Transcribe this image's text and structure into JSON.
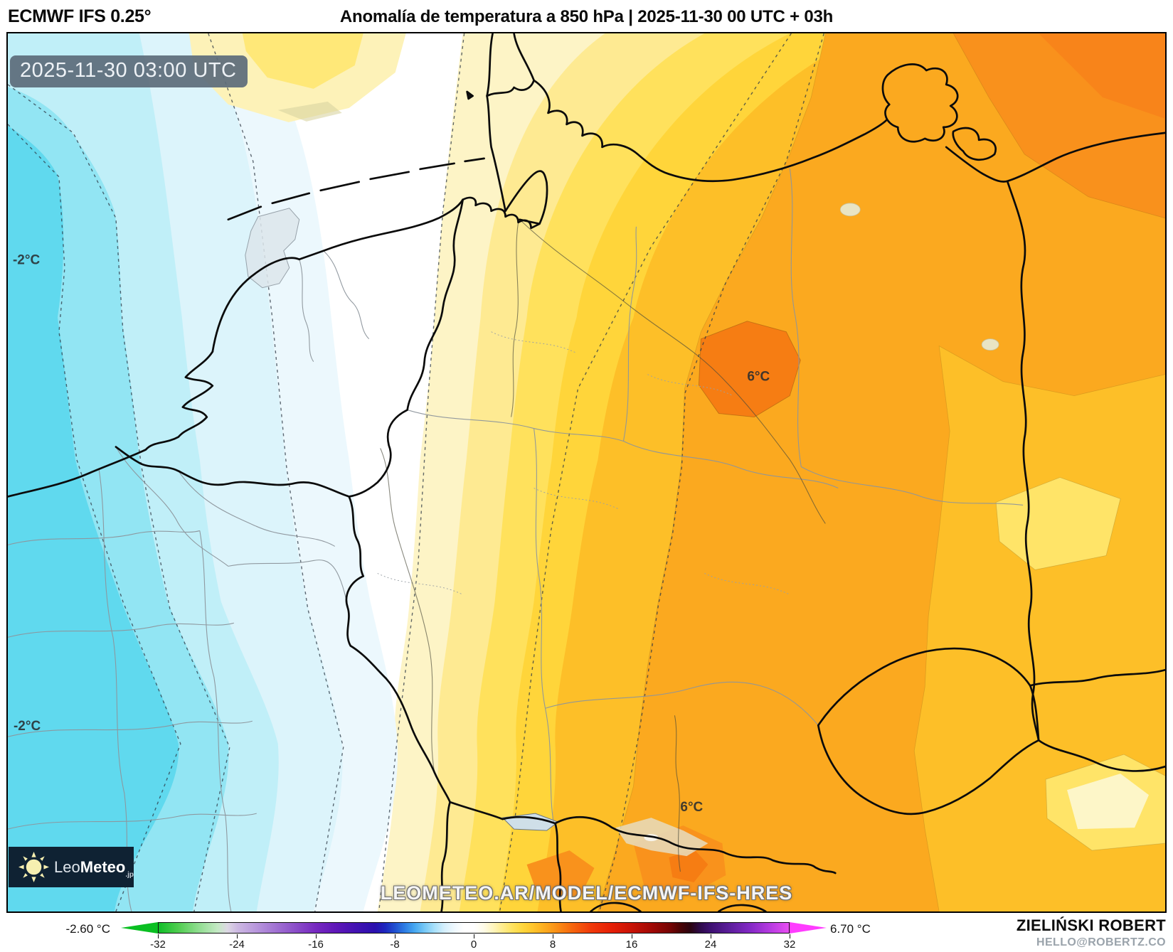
{
  "header": {
    "model_label": "ECMWF IFS 0.25°",
    "title": "Anomalía de temperatura a 850 hPa | 2025-11-30 00 UTC + 03h"
  },
  "map": {
    "timestamp": "2025-11-30 03:00 UTC",
    "watermark": "LEOMETEO.AR/MODEL/ECMWF-IFS-HRES",
    "labels": [
      {
        "text": "-2°C"
      },
      {
        "text": "-2°C"
      },
      {
        "text": "6°C"
      },
      {
        "text": "6°C"
      }
    ],
    "logo": {
      "light": "Leo",
      "bold": "Meteo",
      "suffix": ".jp"
    },
    "palette": {
      "cyan_deep": "#60d9ee",
      "cyan": "#92e5f3",
      "cyan_pale": "#c0eff8",
      "blue_pale": "#dcf4fb",
      "blue_palest": "#ecf8fd",
      "zero_white": "#ffffff",
      "cream": "#fdf4c6",
      "yellow_light": "#feea92",
      "yellow": "#ffe15c",
      "gold": "#ffd53a",
      "amber": "#fdbf28",
      "orange": "#fba91f",
      "orange_dark": "#f9911c",
      "orange_deep": "#f67d13",
      "badge_bg": "#5c6b7a",
      "logo_bg": "#0f2233"
    }
  },
  "colorbar": {
    "min_label": "-2.60 °C",
    "max_label": "6.70 °C",
    "ticks": [
      "-32",
      "-24",
      "-16",
      "-8",
      "0",
      "8",
      "16",
      "24",
      "32"
    ],
    "tick_values": [
      -32,
      -24,
      -16,
      -8,
      0,
      8,
      16,
      24,
      32
    ],
    "range": [
      -32,
      32
    ],
    "arrow_left_color": "#0abf22",
    "arrow_right_color": "#ff3cff",
    "stops": [
      {
        "v": -32,
        "c": "#10bf28"
      },
      {
        "v": -30,
        "c": "#50cd50"
      },
      {
        "v": -28,
        "c": "#8edd8e"
      },
      {
        "v": -26,
        "c": "#c4e9c4"
      },
      {
        "v": -25,
        "c": "#ddd8e4"
      },
      {
        "v": -24,
        "c": "#cdb9e2"
      },
      {
        "v": -22,
        "c": "#b795dc"
      },
      {
        "v": -20,
        "c": "#a070d2"
      },
      {
        "v": -18,
        "c": "#8a4cc8"
      },
      {
        "v": -16,
        "c": "#7628c0"
      },
      {
        "v": -14,
        "c": "#5f17b8"
      },
      {
        "v": -12,
        "c": "#4312b2"
      },
      {
        "v": -10,
        "c": "#2a10ae"
      },
      {
        "v": -9,
        "c": "#1d27be"
      },
      {
        "v": -8,
        "c": "#2150d0"
      },
      {
        "v": -7,
        "c": "#2d7de4"
      },
      {
        "v": -6,
        "c": "#47a8f0"
      },
      {
        "v": -5,
        "c": "#76c8f6"
      },
      {
        "v": -4,
        "c": "#a8e0fa"
      },
      {
        "v": -3,
        "c": "#d4effc"
      },
      {
        "v": -2,
        "c": "#eef8fe"
      },
      {
        "v": -1,
        "c": "#ffffff"
      },
      {
        "v": 0,
        "c": "#ffffff"
      },
      {
        "v": 1,
        "c": "#fffce8"
      },
      {
        "v": 2,
        "c": "#fff5bc"
      },
      {
        "v": 3,
        "c": "#ffec8a"
      },
      {
        "v": 4,
        "c": "#ffe25c"
      },
      {
        "v": 5,
        "c": "#ffd63c"
      },
      {
        "v": 6,
        "c": "#ffc52c"
      },
      {
        "v": 7,
        "c": "#fdb021"
      },
      {
        "v": 8,
        "c": "#fb9a1a"
      },
      {
        "v": 9,
        "c": "#f98113"
      },
      {
        "v": 10,
        "c": "#f6660e"
      },
      {
        "v": 12,
        "c": "#f0380a"
      },
      {
        "v": 14,
        "c": "#e61f06"
      },
      {
        "v": 16,
        "c": "#c91306"
      },
      {
        "v": 18,
        "c": "#a30905"
      },
      {
        "v": 20,
        "c": "#740404"
      },
      {
        "v": 21,
        "c": "#4a0305"
      },
      {
        "v": 22,
        "c": "#2b0310"
      },
      {
        "v": 23,
        "c": "#2e0a4a"
      },
      {
        "v": 24,
        "c": "#3d1070"
      },
      {
        "v": 26,
        "c": "#5c1e9c"
      },
      {
        "v": 28,
        "c": "#8228c4"
      },
      {
        "v": 30,
        "c": "#b43ae0"
      },
      {
        "v": 32,
        "c": "#e84df2"
      }
    ]
  },
  "credits": {
    "author": "ZIELIŃSKI ROBERT",
    "contact": "HELLO@ROBERTZ.CO"
  }
}
